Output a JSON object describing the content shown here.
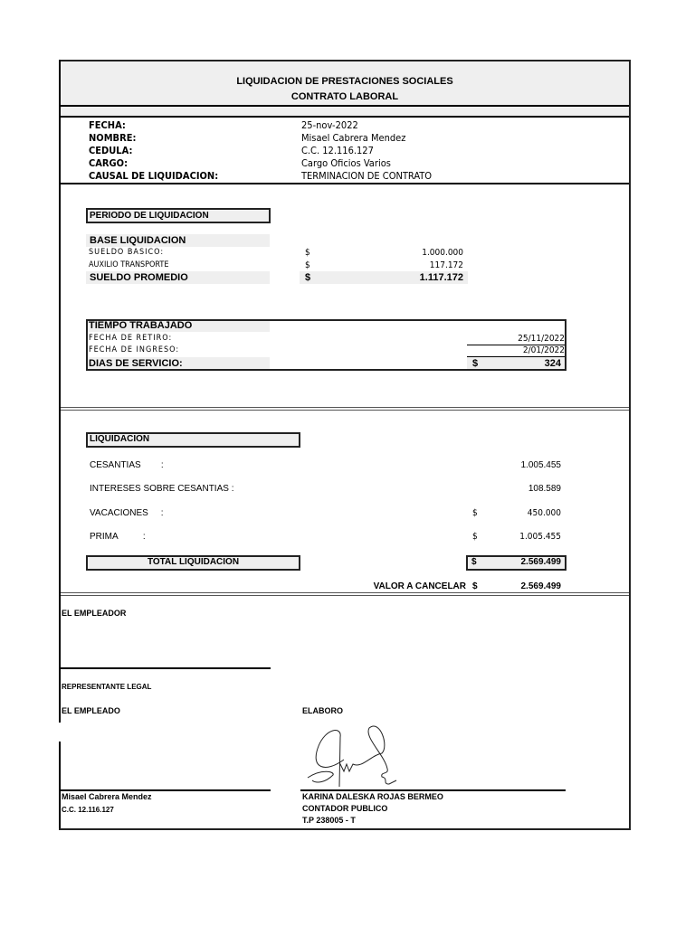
{
  "header": {
    "title": "LIQUIDACION DE PRESTACIONES SOCIALES",
    "subtitle": "CONTRATO LABORAL"
  },
  "info": [
    {
      "label": "FECHA:",
      "value": "25-nov-2022"
    },
    {
      "label": "NOMBRE:",
      "value": "Misael Cabrera Mendez"
    },
    {
      "label": "CEDULA:",
      "value": "C.C.  12.116.127"
    },
    {
      "label": "CARGO:",
      "value": "Cargo Oficios Varios"
    },
    {
      "label": "CAUSAL DE LIQUIDACION:",
      "value": "TERMINACION DE CONTRATO"
    }
  ],
  "periodo": {
    "title": "PERIODO DE LIQUIDACION",
    "base_title": "BASE LIQUIDACION",
    "rows": [
      {
        "label": "SUELDO BASICO:",
        "currency": "$",
        "value": "1.000.000"
      },
      {
        "label": "AUXILIO TRANSPORTE",
        "currency": "$",
        "value": "117.172"
      }
    ],
    "total": {
      "label": "SUELDO PROMEDIO",
      "currency": "$",
      "value": "1.117.172"
    }
  },
  "tiempo": {
    "title": "TIEMPO TRABAJADO",
    "retiro_label": "FECHA DE RETIRO:",
    "retiro": "25/11/2022",
    "ingreso_label": "FECHA DE INGRESO:",
    "ingreso": "2/01/2022",
    "dias_label": "DIAS DE SERVICIO:",
    "dias_currency": "$",
    "dias": "324"
  },
  "liquidacion": {
    "title": "LIQUIDACION",
    "rows": [
      {
        "label": "CESANTIAS        :",
        "currency": "",
        "value": "1.005.455"
      },
      {
        "label": "INTERESES SOBRE CESANTIAS :",
        "currency": "",
        "value": "108.589"
      },
      {
        "label": "VACACIONES     :",
        "currency": "$",
        "value": "450.000"
      },
      {
        "label": "PRIMA          :",
        "currency": "$",
        "value": "1.005.455"
      }
    ],
    "total_label": "TOTAL LIQUIDACION",
    "total_currency": "$",
    "total": "2.569.499",
    "cancelar_label": "VALOR A CANCELAR",
    "cancelar_currency": "$",
    "cancelar": "2.569.499"
  },
  "firmas": {
    "empleador": "EL EMPLEADOR",
    "representante": "REPRESENTANTE LEGAL",
    "empleado": "EL EMPLEADO",
    "elaboro": "ELABORO",
    "empleado_name": "Misael Cabrera Mendez",
    "empleado_cc": "C.C.  12.116.127",
    "contador_name": "KARINA DALESKA ROJAS BERMEO",
    "contador_title": "CONTADOR PUBLICO",
    "contador_tp": "T.P 238005 - T"
  }
}
